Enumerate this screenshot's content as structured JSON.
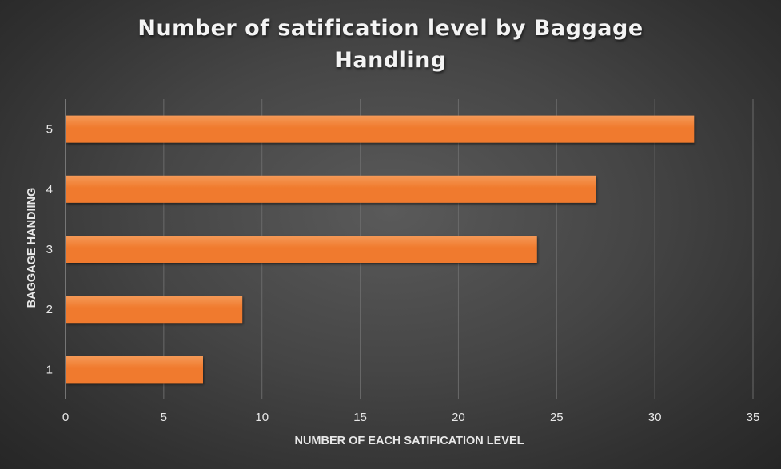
{
  "chart_data": {
    "type": "bar",
    "orientation": "horizontal",
    "title": "Number of satification level by Baggage Handling",
    "title_lines": [
      "Number of satification  level by Baggage",
      "Handling"
    ],
    "xlabel": "NUMBER OF EACH SATIFICATION LEVEL",
    "ylabel": "BAGGAGE HANDIING",
    "categories": [
      "1",
      "2",
      "3",
      "4",
      "5"
    ],
    "values": [
      7,
      9,
      24,
      27,
      32
    ],
    "xlim": [
      0,
      35
    ],
    "xticks": [
      "0",
      "5",
      "10",
      "15",
      "20",
      "25",
      "30",
      "35"
    ],
    "grid": "vertical",
    "legend": "none",
    "colors": {
      "bar": "#f07a2d",
      "bar_top": "#f59a58",
      "grid": "#6a6a6a",
      "axis": "#8a8a8a",
      "text": "#e8e8e8"
    }
  }
}
